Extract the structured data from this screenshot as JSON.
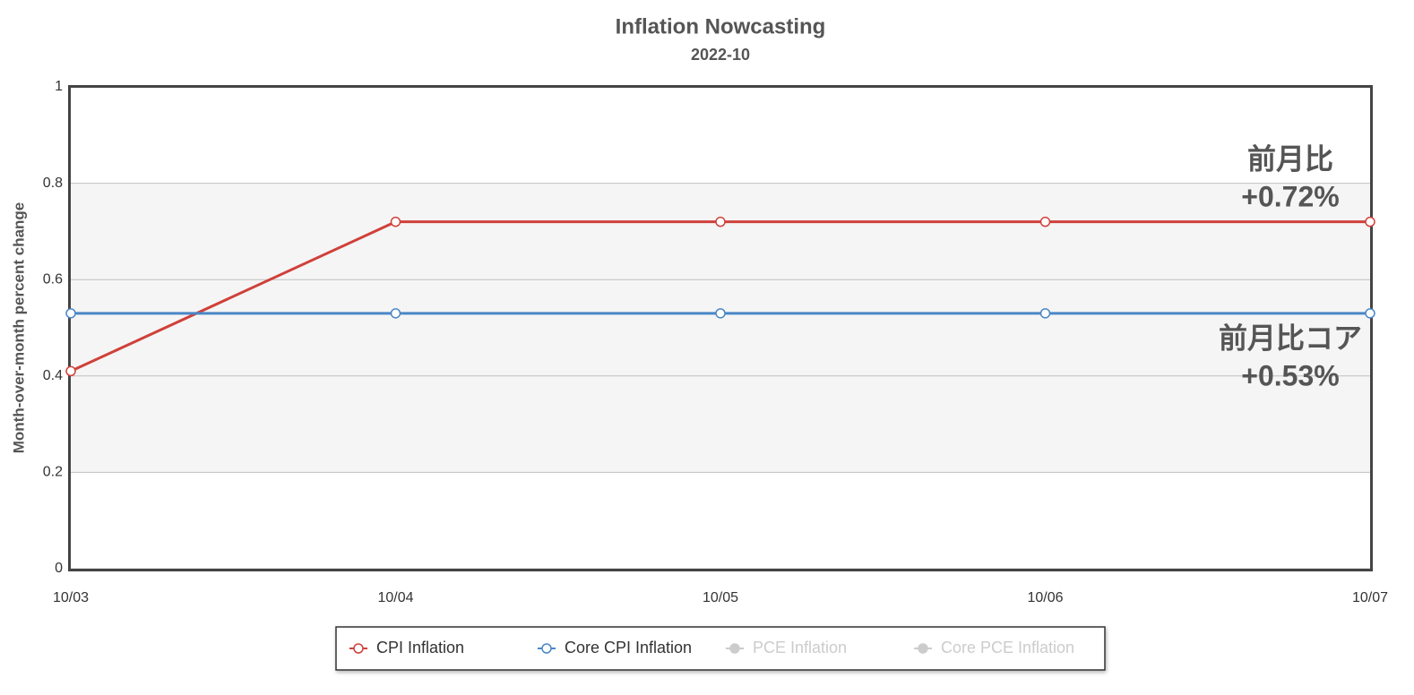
{
  "chart_data": {
    "type": "line",
    "title": "Inflation Nowcasting",
    "subtitle": "2022-10",
    "ylabel": "Month-over-month percent change",
    "categories": [
      "10/03",
      "10/04",
      "10/05",
      "10/06",
      "10/07"
    ],
    "series": [
      {
        "name": "CPI Inflation",
        "color": "#d0403a",
        "visible": true,
        "values": [
          0.41,
          0.72,
          0.72,
          0.72,
          0.72
        ]
      },
      {
        "name": "Core CPI Inflation",
        "color": "#4a87c6",
        "visible": true,
        "values": [
          0.53,
          0.53,
          0.53,
          0.53,
          0.53
        ]
      },
      {
        "name": "PCE Inflation",
        "color": "#cccccc",
        "visible": false,
        "values": [
          null,
          null,
          null,
          null,
          null
        ]
      },
      {
        "name": "Core PCE Inflation",
        "color": "#cccccc",
        "visible": false,
        "values": [
          null,
          null,
          null,
          null,
          null
        ]
      }
    ],
    "annotations": [
      {
        "lines": [
          "前月比",
          "+0.72%"
        ]
      },
      {
        "lines": [
          "前月比コア",
          "+0.53%"
        ]
      }
    ],
    "ylim": [
      0,
      1
    ],
    "yticks": [
      0,
      0.2,
      0.4,
      0.6,
      0.8,
      1
    ],
    "grid": true,
    "plot_band": {
      "from": 0.2,
      "to": 0.8,
      "color": "#f5f5f5"
    },
    "legend": "bottom"
  }
}
